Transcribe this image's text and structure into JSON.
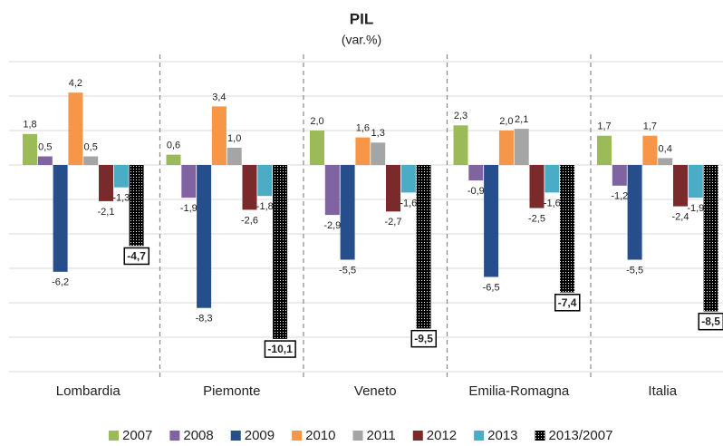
{
  "chart_data": {
    "type": "bar",
    "title": "PIL",
    "subtitle": "(var.%)",
    "categories": [
      "Lombardia",
      "Piemonte",
      "Veneto",
      "Emilia-Romagna",
      "Italia"
    ],
    "ylim": [
      -12,
      6
    ],
    "yticks": [
      -12,
      -10,
      -8,
      -6,
      -4,
      -2,
      0,
      2,
      4,
      6
    ],
    "grid": true,
    "series": [
      {
        "name": "2007",
        "color": "#9bbb59",
        "values": [
          1.8,
          0.6,
          2.0,
          2.3,
          1.7
        ],
        "value_labels": [
          "1,8",
          "0,6",
          "2,0",
          "2,3",
          "1,7"
        ]
      },
      {
        "name": "2008",
        "color": "#8064a2",
        "values": [
          0.5,
          -1.9,
          -2.9,
          -0.9,
          -1.2
        ],
        "value_labels": [
          "0,5",
          "-1,9",
          "-2,9",
          "-0,9",
          "-1,2"
        ]
      },
      {
        "name": "2009",
        "color": "#254e8a",
        "values": [
          -6.2,
          -8.3,
          -5.5,
          -6.5,
          -5.5
        ],
        "value_labels": [
          "-6,2",
          "-8,3",
          "-5,5",
          "-6,5",
          "-5,5"
        ]
      },
      {
        "name": "2010",
        "color": "#f79646",
        "values": [
          4.2,
          3.4,
          1.6,
          2.0,
          1.7
        ],
        "value_labels": [
          "4,2",
          "3,4",
          "1,6",
          "2,0",
          "1,7"
        ]
      },
      {
        "name": "2011",
        "color": "#a5a5a5",
        "values": [
          0.5,
          1.0,
          1.3,
          2.1,
          0.4
        ],
        "value_labels": [
          "0,5",
          "1,0",
          "1,3",
          "2,1",
          "0,4"
        ]
      },
      {
        "name": "2012",
        "color": "#7a2a2a",
        "values": [
          -2.1,
          -2.6,
          -2.7,
          -2.5,
          -2.4
        ],
        "value_labels": [
          "-2,1",
          "-2,6",
          "-2,7",
          "-2,5",
          "-2,4"
        ]
      },
      {
        "name": "2013",
        "color": "#4bacc6",
        "values": [
          -1.3,
          -1.8,
          -1.6,
          -1.6,
          -1.9
        ],
        "value_labels": [
          "-1,3",
          "-1,8",
          "-1,6",
          "-1,6",
          "-1,9"
        ]
      },
      {
        "name": "2013/2007",
        "color": "#000000",
        "values": [
          -4.7,
          -10.1,
          -9.5,
          -7.4,
          -8.5
        ],
        "value_labels": [
          "-4,7",
          "-10,1",
          "-9,5",
          "-7,4",
          "-8,5"
        ]
      }
    ]
  }
}
